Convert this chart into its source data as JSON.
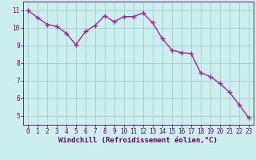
{
  "x": [
    0,
    1,
    2,
    3,
    4,
    5,
    6,
    7,
    8,
    9,
    10,
    11,
    12,
    13,
    14,
    15,
    16,
    17,
    18,
    19,
    20,
    21,
    22,
    23
  ],
  "y": [
    11.0,
    10.6,
    10.2,
    10.1,
    9.7,
    9.05,
    9.8,
    10.15,
    10.7,
    10.35,
    10.65,
    10.65,
    10.85,
    10.3,
    9.4,
    8.75,
    8.6,
    8.55,
    7.45,
    7.25,
    6.85,
    6.35,
    5.65,
    4.9
  ],
  "line_color": "#aa2299",
  "marker_color": "#aa2299",
  "bg_color": "#cceeee",
  "grid_color": "#aacccc",
  "xlabel": "Windchill (Refroidissement éolien,°C)",
  "xlabel_color": "#660066",
  "tick_color": "#660066",
  "xlim": [
    -0.5,
    23.5
  ],
  "ylim": [
    4.5,
    11.5
  ],
  "yticks": [
    5,
    6,
    7,
    8,
    9,
    10,
    11
  ],
  "xticks": [
    0,
    1,
    2,
    3,
    4,
    5,
    6,
    7,
    8,
    9,
    10,
    11,
    12,
    13,
    14,
    15,
    16,
    17,
    18,
    19,
    20,
    21,
    22,
    23
  ],
  "spine_color": "#660066",
  "font_size_tick": 5.5,
  "font_size_xlabel": 6.5,
  "marker_size": 2.5,
  "line_width": 1.0
}
